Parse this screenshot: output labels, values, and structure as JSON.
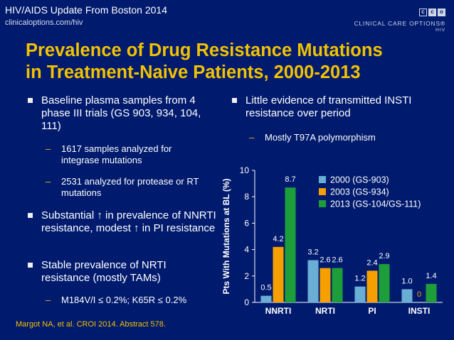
{
  "header": {
    "title": "HIV/AIDS Update From Boston 2014",
    "url": "clinicaloptions.com/hiv",
    "logo_name": "CLINICAL CARE OPTIONS®",
    "logo_sub": "HIV",
    "logo_letters": [
      "c",
      "c",
      "o"
    ]
  },
  "slide_title": {
    "line1": "Prevalence of Drug Resistance Mutations",
    "line2": "in Treatment-Naive Patients, 2000-2013"
  },
  "left_bullets": {
    "b1": "Baseline plasma samples from 4 phase III trials (GS 903, 934, 104, 111)",
    "b1_sub1": "1617 samples analyzed for integrase mutations",
    "b1_sub2": "2531 analyzed for protease or RT mutations",
    "b2": "Substantial ↑ in prevalence of NNRTI resistance, modest ↑ in PI resistance",
    "b3": "Stable prevalence of NRTI resistance (mostly TAMs)",
    "b3_sub1": "M184V/I ≤ 0.2%; K65R ≤ 0.2%"
  },
  "right_bullets": {
    "b1": "Little evidence of transmitted INSTI resistance over period",
    "b1_sub1": "Mostly T97A polymorphism"
  },
  "reference": "Margot NA, et al. CROI 2014. Abstract 578.",
  "chart_data": {
    "type": "bar",
    "title": "",
    "xlabel": "",
    "ylabel": "Pts With Mutations at BL (%)",
    "ylim": [
      0,
      10
    ],
    "yticks": [
      0,
      2,
      4,
      6,
      8,
      10
    ],
    "categories": [
      "NNRTI",
      "NRTI",
      "PI",
      "INSTI"
    ],
    "legend_position": "top-right",
    "series": [
      {
        "name": "2000 (GS-903)",
        "color": "#6aaed6",
        "values": [
          0.5,
          3.2,
          1.2,
          1.0
        ],
        "labels": [
          "0.5",
          "3.2",
          "1.2",
          "1.0"
        ]
      },
      {
        "name": "2003 (GS-934)",
        "color": "#f5a000",
        "values": [
          4.2,
          2.6,
          2.4,
          0
        ],
        "labels": [
          "4.2",
          "2.6",
          "2.4",
          "0"
        ]
      },
      {
        "name": "2013 (GS-104/GS-111)",
        "color": "#1e9e3a",
        "values": [
          8.7,
          2.6,
          2.9,
          1.4
        ],
        "labels": [
          "8.7",
          "2.6",
          "2.9",
          "1.4"
        ]
      }
    ]
  }
}
